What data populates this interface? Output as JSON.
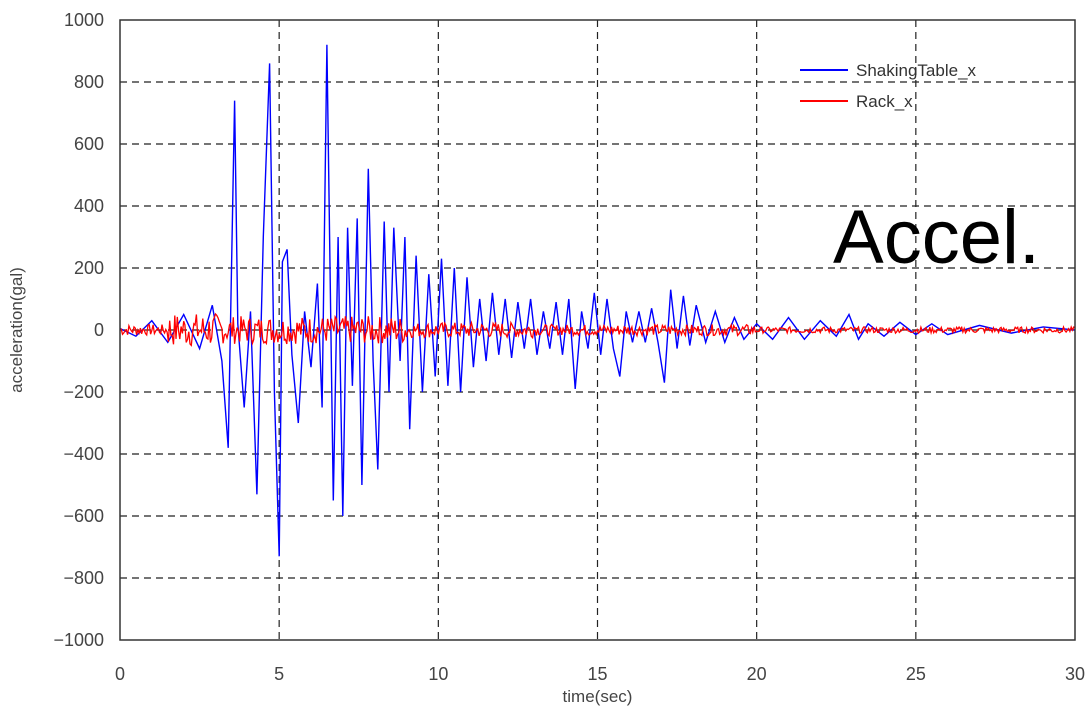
{
  "chart_data": {
    "type": "line",
    "xlabel": "time(sec)",
    "ylabel": "acceleration(gal)",
    "xlim": [
      0,
      30
    ],
    "ylim": [
      -1000,
      1000
    ],
    "x_ticks": [
      0,
      5,
      10,
      15,
      20,
      25,
      30
    ],
    "y_ticks": [
      1000,
      800,
      600,
      400,
      200,
      0,
      -200,
      -400,
      -600,
      -800,
      -1000
    ],
    "grid": true,
    "legend_position": "top-right",
    "annotation": "Accel.",
    "series": [
      {
        "name": "ShakingTable_x",
        "color": "#0000ff",
        "x": [
          0,
          0.5,
          1.0,
          1.5,
          2.0,
          2.5,
          2.9,
          3.2,
          3.4,
          3.6,
          3.7,
          3.9,
          4.1,
          4.3,
          4.5,
          4.7,
          4.85,
          5.0,
          5.1,
          5.25,
          5.4,
          5.6,
          5.8,
          6.0,
          6.2,
          6.35,
          6.5,
          6.7,
          6.85,
          7.0,
          7.15,
          7.3,
          7.45,
          7.6,
          7.8,
          7.95,
          8.1,
          8.3,
          8.45,
          8.6,
          8.8,
          8.95,
          9.1,
          9.3,
          9.5,
          9.7,
          9.9,
          10.1,
          10.3,
          10.5,
          10.7,
          10.9,
          11.1,
          11.3,
          11.5,
          11.7,
          11.9,
          12.1,
          12.3,
          12.5,
          12.7,
          12.9,
          13.1,
          13.3,
          13.5,
          13.7,
          13.9,
          14.1,
          14.3,
          14.5,
          14.7,
          14.9,
          15.1,
          15.3,
          15.5,
          15.7,
          15.9,
          16.1,
          16.3,
          16.5,
          16.7,
          16.9,
          17.1,
          17.3,
          17.5,
          17.7,
          17.9,
          18.1,
          18.4,
          18.7,
          19.0,
          19.3,
          19.6,
          20.0,
          20.5,
          21.0,
          21.5,
          22.0,
          22.5,
          22.9,
          23.2,
          23.5,
          24.0,
          24.5,
          25.0,
          25.5,
          26.0,
          27.0,
          28.0,
          29.0,
          30.0
        ],
        "values": [
          5,
          -20,
          30,
          -40,
          50,
          -60,
          80,
          -100,
          -380,
          740,
          20,
          -250,
          60,
          -530,
          300,
          860,
          -200,
          -730,
          220,
          260,
          -80,
          -300,
          60,
          -120,
          150,
          -250,
          920,
          -550,
          300,
          -600,
          330,
          -180,
          360,
          -500,
          520,
          -100,
          -450,
          350,
          -200,
          330,
          -100,
          300,
          -320,
          240,
          -200,
          180,
          -150,
          230,
          -180,
          200,
          -200,
          170,
          -120,
          100,
          -100,
          120,
          -80,
          100,
          -90,
          90,
          -60,
          100,
          -80,
          60,
          -60,
          90,
          -80,
          100,
          -190,
          60,
          -60,
          120,
          -80,
          100,
          -60,
          -150,
          60,
          -40,
          60,
          -40,
          70,
          -40,
          -170,
          130,
          -60,
          110,
          -50,
          80,
          -40,
          60,
          -40,
          40,
          -30,
          20,
          -30,
          40,
          -30,
          30,
          -20,
          50,
          -30,
          20,
          -20,
          25,
          -15,
          20,
          -15,
          15,
          -10,
          10,
          0
        ]
      },
      {
        "name": "Rack_x",
        "color": "#ff0000"
      }
    ]
  }
}
